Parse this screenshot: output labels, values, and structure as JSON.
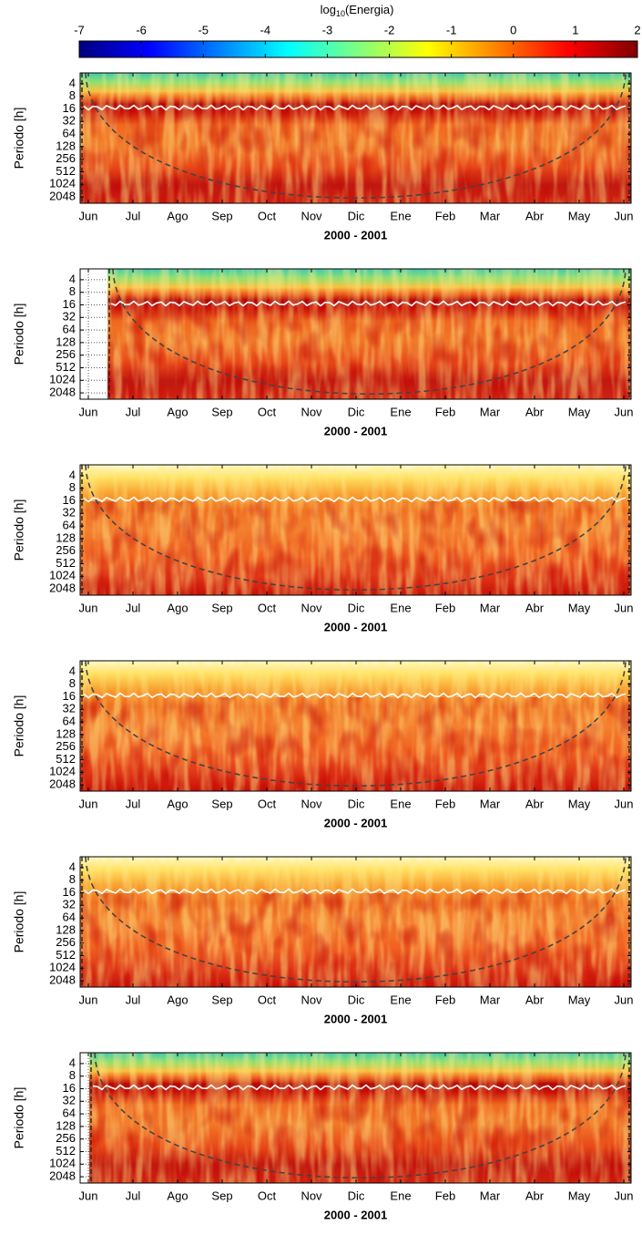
{
  "colorbar": {
    "label_prefix": "log",
    "label_subscript": "10",
    "label_suffix": "(Energia)",
    "colormap": "jet",
    "lim": [
      -7,
      2
    ],
    "ticks": [
      -7,
      -6,
      -5,
      -4,
      -3,
      -2,
      -1,
      0,
      1,
      2
    ]
  },
  "chart_data": [
    {
      "type": "heatmap",
      "ylabel": "Periodo [h]",
      "xlabel": "2000 - 2001",
      "yscale": "log2",
      "yreversed": true,
      "categories": [
        "Jun",
        "Jul",
        "Ago",
        "Sep",
        "Oct",
        "Nov",
        "Dic",
        "Ene",
        "Feb",
        "Mar",
        "Abr",
        "May",
        "Jun"
      ],
      "ylim": [
        2.2,
        2900
      ],
      "yticks": [
        4,
        8,
        16,
        32,
        64,
        128,
        256,
        512,
        1024,
        2048
      ],
      "grid": true
    },
    {
      "type": "heatmap",
      "ylabel": "Periodo [h]",
      "xlabel": "2000 - 2001",
      "yscale": "log2",
      "yreversed": true,
      "categories": [
        "Jun",
        "Jul",
        "Ago",
        "Sep",
        "Oct",
        "Nov",
        "Dic",
        "Ene",
        "Feb",
        "Mar",
        "Abr",
        "May",
        "Jun"
      ],
      "ylim": [
        2.2,
        2900
      ],
      "yticks": [
        4,
        8,
        16,
        32,
        64,
        128,
        256,
        512,
        1024,
        2048
      ],
      "grid": true
    },
    {
      "type": "heatmap",
      "ylabel": "Periodo [h]",
      "xlabel": "2000 - 2001",
      "yscale": "log2",
      "yreversed": true,
      "categories": [
        "Jun",
        "Jul",
        "Ago",
        "Sep",
        "Oct",
        "Nov",
        "Dic",
        "Ene",
        "Feb",
        "Mar",
        "Abr",
        "May",
        "Jun"
      ],
      "ylim": [
        2.2,
        2900
      ],
      "yticks": [
        4,
        8,
        16,
        32,
        64,
        128,
        256,
        512,
        1024,
        2048
      ],
      "grid": true
    },
    {
      "type": "heatmap",
      "ylabel": "Periodo [h]",
      "xlabel": "2000 - 2001",
      "yscale": "log2",
      "yreversed": true,
      "categories": [
        "Jun",
        "Jul",
        "Ago",
        "Sep",
        "Oct",
        "Nov",
        "Dic",
        "Ene",
        "Feb",
        "Mar",
        "Abr",
        "May",
        "Jun"
      ],
      "ylim": [
        2.2,
        2900
      ],
      "yticks": [
        4,
        8,
        16,
        32,
        64,
        128,
        256,
        512,
        1024,
        2048
      ],
      "grid": true
    },
    {
      "type": "heatmap",
      "ylabel": "Periodo [h]",
      "xlabel": "2000 - 2001",
      "yscale": "log2",
      "yreversed": true,
      "categories": [
        "Jun",
        "Jul",
        "Ago",
        "Sep",
        "Oct",
        "Nov",
        "Dic",
        "Ene",
        "Feb",
        "Mar",
        "Abr",
        "May",
        "Jun"
      ],
      "ylim": [
        2.2,
        2900
      ],
      "yticks": [
        4,
        8,
        16,
        32,
        64,
        128,
        256,
        512,
        1024,
        2048
      ],
      "grid": true
    },
    {
      "type": "heatmap",
      "ylabel": "Periodo [h]",
      "xlabel": "2000 - 2001",
      "yscale": "log2",
      "yreversed": true,
      "categories": [
        "Jun",
        "Jul",
        "Ago",
        "Sep",
        "Oct",
        "Nov",
        "Dic",
        "Ene",
        "Feb",
        "Mar",
        "Abr",
        "May",
        "Jun"
      ],
      "ylim": [
        2.2,
        2900
      ],
      "yticks": [
        4,
        8,
        16,
        32,
        64,
        128,
        256,
        512,
        1024,
        2048
      ],
      "grid": true
    }
  ]
}
